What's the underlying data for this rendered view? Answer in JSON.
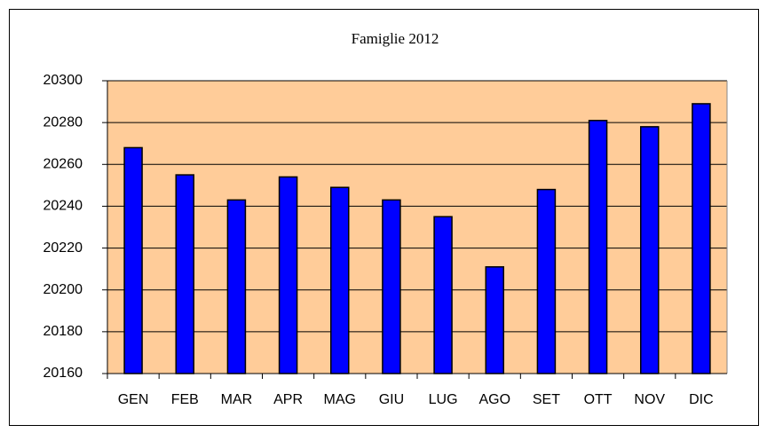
{
  "chart_data": {
    "type": "bar",
    "title": "Famiglie 2012",
    "categories": [
      "GEN",
      "FEB",
      "MAR",
      "APR",
      "MAG",
      "GIU",
      "LUG",
      "AGO",
      "SET",
      "OTT",
      "NOV",
      "DIC"
    ],
    "values": [
      20268,
      20255,
      20243,
      20254,
      20249,
      20243,
      20235,
      20211,
      20248,
      20281,
      20278,
      20289
    ],
    "color": "#0000ff",
    "ylim": [
      20160,
      20300
    ],
    "yticks": [
      20160,
      20180,
      20200,
      20220,
      20240,
      20260,
      20280,
      20300
    ],
    "grid": true
  }
}
